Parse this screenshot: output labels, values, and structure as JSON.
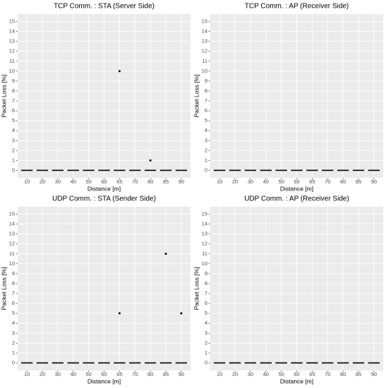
{
  "chart_data": [
    {
      "type": "box",
      "title": "TCP Comm. : STA (Server Side)",
      "xlabel": "Distance [m]",
      "ylabel": "Packet Loss [%]",
      "categories": [
        "10",
        "20",
        "30",
        "40",
        "50",
        "60",
        "65",
        "70",
        "80",
        "85",
        "90"
      ],
      "values": [
        0,
        0,
        0,
        0,
        0,
        0,
        0,
        0,
        0,
        0,
        0
      ],
      "outliers": [
        {
          "category": "65",
          "value": 10
        },
        {
          "category": "80",
          "value": 1
        }
      ],
      "ylim": [
        -0.75,
        15.75
      ],
      "yticks": [
        0,
        1,
        2,
        3,
        4,
        5,
        6,
        7,
        8,
        9,
        10,
        11,
        12,
        13,
        14,
        15
      ],
      "grid": true,
      "color": "#000000"
    },
    {
      "type": "box",
      "title": "TCP Comm. : AP (Receiver Side)",
      "xlabel": "Distance [m]",
      "ylabel": "Packet Loss [%]",
      "categories": [
        "10",
        "20",
        "30",
        "40",
        "50",
        "60",
        "65",
        "70",
        "80",
        "85",
        "90"
      ],
      "values": [
        0,
        0,
        0,
        0,
        0,
        0,
        0,
        0,
        0,
        0,
        0
      ],
      "outliers": [],
      "ylim": [
        -0.75,
        15.75
      ],
      "yticks": [
        0,
        1,
        2,
        3,
        4,
        5,
        6,
        7,
        8,
        9,
        10,
        11,
        12,
        13,
        14,
        15
      ],
      "grid": true,
      "color": "#000000"
    },
    {
      "type": "box",
      "title": "UDP Comm. : STA (Sender Side)",
      "xlabel": "Distance [m]",
      "ylabel": "Packet Loss [%]",
      "categories": [
        "10",
        "20",
        "30",
        "40",
        "50",
        "60",
        "65",
        "70",
        "80",
        "85",
        "90"
      ],
      "values": [
        0,
        0,
        0,
        0,
        0,
        0,
        0,
        0,
        0,
        0,
        0
      ],
      "outliers": [
        {
          "category": "65",
          "value": 5
        },
        {
          "category": "85",
          "value": 11
        },
        {
          "category": "90",
          "value": 5
        }
      ],
      "ylim": [
        -0.75,
        15.75
      ],
      "yticks": [
        0,
        1,
        2,
        3,
        4,
        5,
        6,
        7,
        8,
        9,
        10,
        11,
        12,
        13,
        14,
        15
      ],
      "grid": true,
      "color": "#000000"
    },
    {
      "type": "box",
      "title": "UDP Comm. : AP (Receiver Side)",
      "xlabel": "Distance [m]",
      "ylabel": "Packet Loss [%]",
      "categories": [
        "10",
        "20",
        "30",
        "40",
        "50",
        "60",
        "65",
        "70",
        "80",
        "85",
        "90"
      ],
      "values": [
        0,
        0,
        0,
        0,
        0,
        0,
        0,
        0,
        0,
        0,
        0
      ],
      "outliers": [],
      "ylim": [
        -0.75,
        15.75
      ],
      "yticks": [
        0,
        1,
        2,
        3,
        4,
        5,
        6,
        7,
        8,
        9,
        10,
        11,
        12,
        13,
        14,
        15
      ],
      "grid": true,
      "color": "#000000"
    }
  ]
}
